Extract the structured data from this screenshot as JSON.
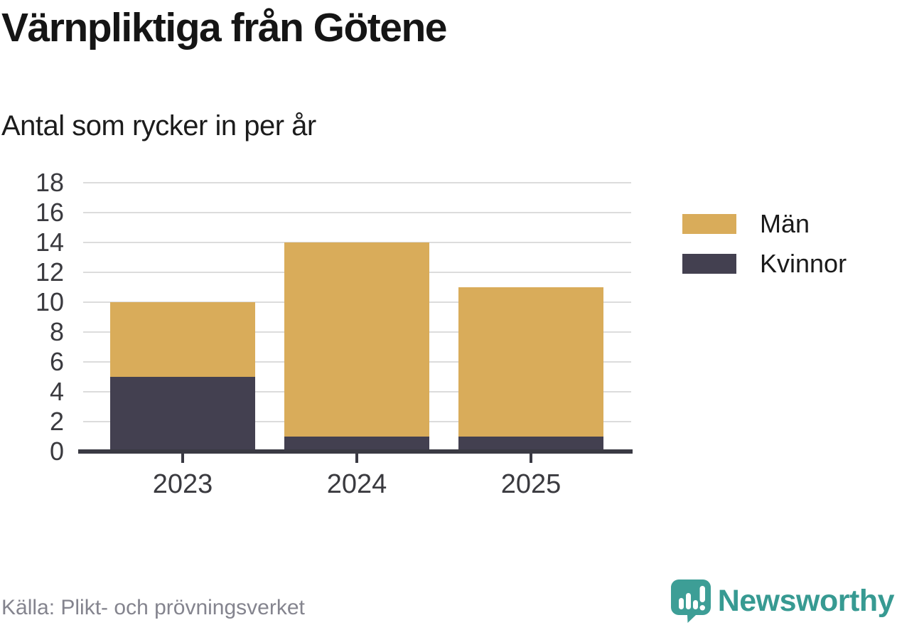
{
  "header": {
    "title": "Värnpliktiga från Götene",
    "subtitle": "Antal som rycker in per år"
  },
  "chart_data": {
    "type": "bar",
    "stacked": true,
    "title": "Värnpliktiga från Götene",
    "subtitle": "Antal som rycker in per år",
    "categories": [
      "2023",
      "2024",
      "2025"
    ],
    "series": [
      {
        "name": "Män",
        "color": "#d9ac5a",
        "values": [
          5,
          13,
          10
        ]
      },
      {
        "name": "Kvinnor",
        "color": "#434050",
        "values": [
          5,
          1,
          1
        ]
      }
    ],
    "totals": [
      10,
      14,
      11
    ],
    "xlabel": "",
    "ylabel": "",
    "ylim": [
      0,
      18
    ],
    "yticks": [
      0,
      2,
      4,
      6,
      8,
      10,
      12,
      14,
      16,
      18
    ],
    "grid": true,
    "gridline_color": "#dcdcdc",
    "axis_color": "#3a3a43",
    "legend_position": "right"
  },
  "legend": {
    "items": [
      {
        "label": "Män",
        "color": "#d9ac5a"
      },
      {
        "label": "Kvinnor",
        "color": "#434050"
      }
    ]
  },
  "footer": {
    "source": "Källa: Plikt- och prövningsverket",
    "brand": "Newsworthy",
    "brand_color": "#379a92",
    "brand_icon": "newsworthy-chart-bubble-icon",
    "brand_icon_color": "#3d9e96"
  }
}
